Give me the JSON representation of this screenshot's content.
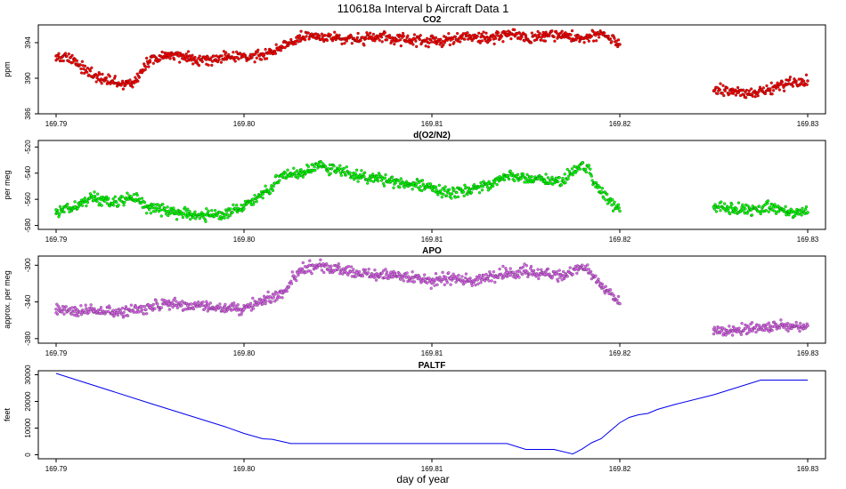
{
  "figure": {
    "title": "110618a   Interval b Aircraft Data 1",
    "xlabel": "day of year"
  },
  "chart_data": [
    {
      "type": "scatter",
      "title": "CO2",
      "ylabel": "ppm",
      "xlim": [
        169.79,
        169.83
      ],
      "ylim": [
        386,
        396
      ],
      "xticks": [
        "169.79",
        "169.80",
        "169.81",
        "169.82",
        "169.83"
      ],
      "yticks": [
        "386",
        "390",
        "394"
      ],
      "color": "#ff0000",
      "series": [
        {
          "x": [
            169.79,
            169.791,
            169.792,
            169.793,
            169.794,
            169.795,
            169.796,
            169.797,
            169.798,
            169.799,
            169.8,
            169.801,
            169.802,
            169.803,
            169.804,
            169.805,
            169.806,
            169.807,
            169.808,
            169.809,
            169.81,
            169.811,
            169.812,
            169.813,
            169.814,
            169.815,
            169.816,
            169.817,
            169.818,
            169.819,
            169.82,
            169.825,
            169.826,
            169.827,
            169.828,
            169.829,
            169.83
          ],
          "y": [
            392.5,
            392.0,
            390.2,
            389.6,
            389.3,
            392.0,
            392.6,
            392.3,
            392.1,
            392.3,
            392.5,
            392.6,
            393.6,
            394.5,
            394.7,
            394.6,
            394.3,
            394.6,
            394.4,
            394.4,
            394.1,
            394.3,
            394.7,
            394.5,
            394.9,
            394.6,
            394.7,
            394.9,
            394.5,
            395.0,
            393.8,
            388.6,
            388.5,
            388.2,
            388.8,
            389.4,
            389.7
          ]
        }
      ]
    },
    {
      "type": "scatter",
      "title": "d(O2/N2)",
      "ylabel": "per meg",
      "xlim": [
        169.79,
        169.83
      ],
      "ylim": [
        -583,
        -515
      ],
      "xticks": [
        "169.79",
        "169.80",
        "169.81",
        "169.82",
        "169.83"
      ],
      "yticks": [
        "-580",
        "-560",
        "-540",
        "-520"
      ],
      "color": "#00ff00",
      "series": [
        {
          "x": [
            169.79,
            169.791,
            169.792,
            169.793,
            169.794,
            169.795,
            169.796,
            169.797,
            169.798,
            169.799,
            169.8,
            169.801,
            169.802,
            169.803,
            169.804,
            169.805,
            169.806,
            169.807,
            169.808,
            169.809,
            169.81,
            169.811,
            169.812,
            169.813,
            169.814,
            169.815,
            169.816,
            169.817,
            169.818,
            169.819,
            169.82,
            169.825,
            169.826,
            169.827,
            169.828,
            169.829,
            169.83
          ],
          "y": [
            -568,
            -566,
            -558,
            -563,
            -558,
            -566,
            -569,
            -571,
            -572,
            -572,
            -565,
            -556,
            -542,
            -540,
            -534,
            -538,
            -542,
            -544,
            -546,
            -548,
            -552,
            -556,
            -553,
            -548,
            -542,
            -544,
            -546,
            -546,
            -532,
            -554,
            -569,
            -566,
            -567,
            -568,
            -566,
            -569,
            -570
          ]
        }
      ]
    },
    {
      "type": "scatter",
      "title": "APO",
      "ylabel": "approx. per meg",
      "xlim": [
        169.79,
        169.83
      ],
      "ylim": [
        -385,
        -290
      ],
      "xticks": [
        "169.79",
        "169.80",
        "169.81",
        "169.82",
        "169.83"
      ],
      "yticks": [
        "-380",
        "-340",
        "-300"
      ],
      "color": "#dd66ee",
      "series": [
        {
          "x": [
            169.79,
            169.791,
            169.792,
            169.793,
            169.794,
            169.795,
            169.796,
            169.797,
            169.798,
            169.799,
            169.8,
            169.801,
            169.802,
            169.803,
            169.804,
            169.805,
            169.806,
            169.807,
            169.808,
            169.809,
            169.81,
            169.811,
            169.812,
            169.813,
            169.814,
            169.815,
            169.816,
            169.817,
            169.818,
            169.819,
            169.82,
            169.825,
            169.826,
            169.827,
            169.828,
            169.829,
            169.83
          ],
          "y": [
            -348,
            -350,
            -350,
            -352,
            -350,
            -346,
            -342,
            -344,
            -346,
            -346,
            -348,
            -338,
            -330,
            -304,
            -300,
            -304,
            -308,
            -312,
            -310,
            -314,
            -318,
            -314,
            -316,
            -312,
            -308,
            -306,
            -310,
            -312,
            -300,
            -322,
            -342,
            -370,
            -372,
            -370,
            -366,
            -368,
            -366
          ]
        }
      ]
    },
    {
      "type": "line",
      "title": "PALTF",
      "ylabel": "feet",
      "xlim": [
        169.79,
        169.83
      ],
      "ylim": [
        -1500,
        31500
      ],
      "xticks": [
        "169.79",
        "169.80",
        "169.81",
        "169.82",
        "169.83"
      ],
      "yticks": [
        "0",
        "10000",
        "20000",
        "30000"
      ],
      "color": "#0000ee",
      "series": [
        {
          "x": [
            169.79,
            169.795,
            169.799,
            169.8,
            169.801,
            169.8015,
            169.802,
            169.8025,
            169.803,
            169.805,
            169.81,
            169.814,
            169.815,
            169.8165,
            169.8175,
            169.818,
            169.8185,
            169.819,
            169.8195,
            169.82,
            169.8205,
            169.821,
            169.8215,
            169.822,
            169.823,
            169.825,
            169.8275,
            169.8285,
            169.83
          ],
          "y": [
            30500,
            19300,
            10500,
            8000,
            6000,
            5800,
            5000,
            4200,
            4200,
            4200,
            4200,
            4200,
            2000,
            2000,
            300,
            2200,
            4500,
            6000,
            9000,
            12000,
            14000,
            15000,
            15500,
            17000,
            19000,
            22500,
            28000,
            28000,
            28000
          ]
        }
      ]
    }
  ]
}
